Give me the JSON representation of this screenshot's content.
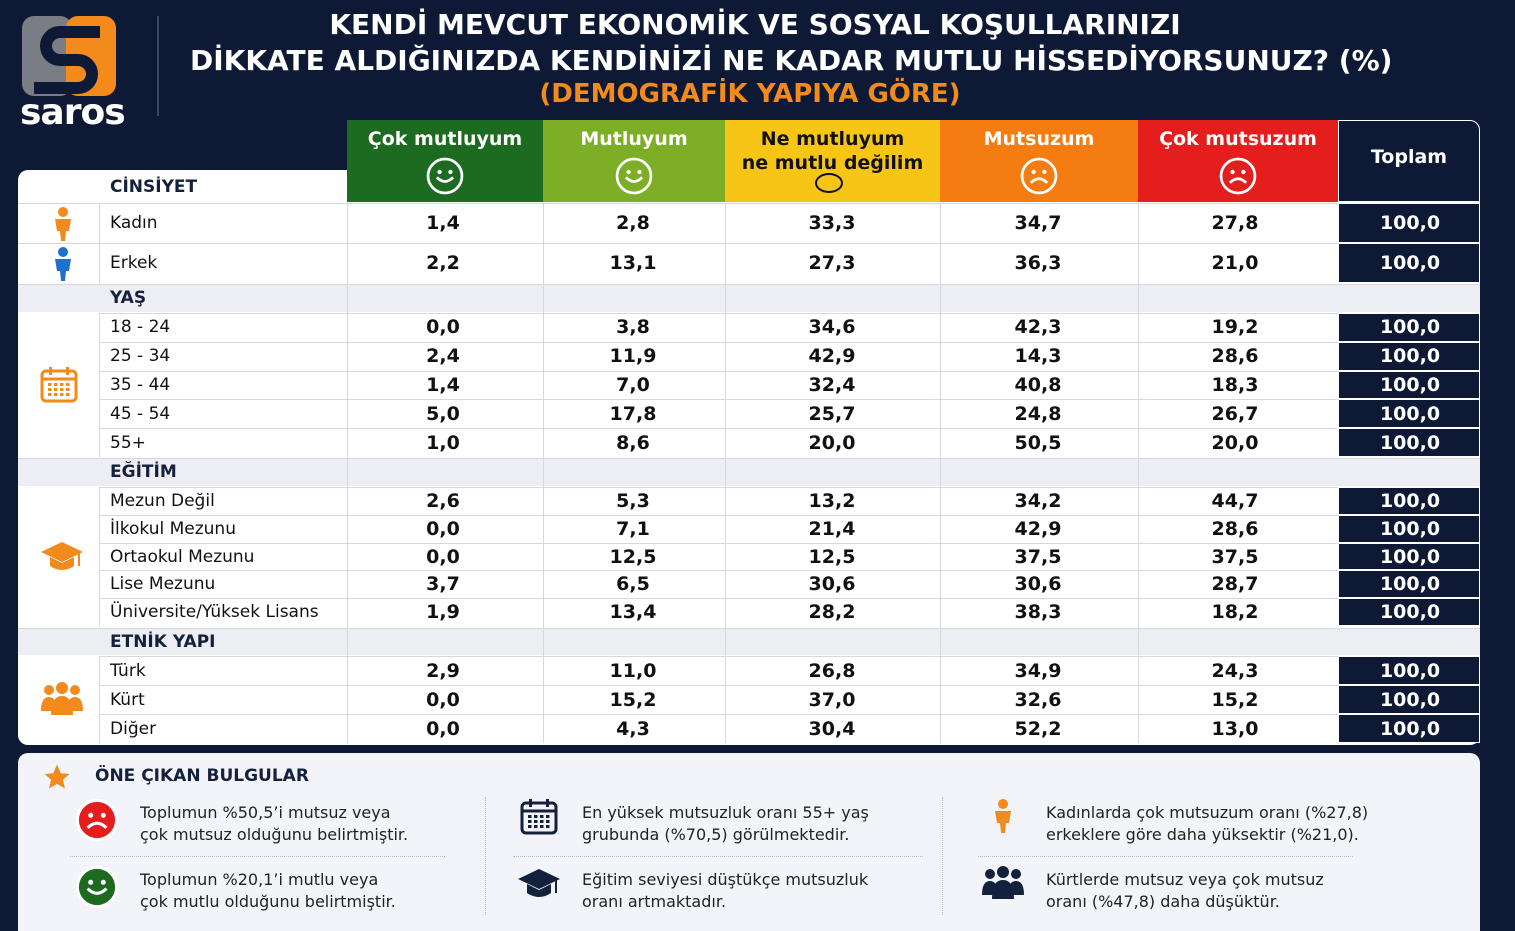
{
  "header": {
    "logo": "saros",
    "title_line1": "KENDİ MEVCUT EKONOMİK VE SOSYAL KOŞULLARINIZI",
    "title_line2": "DİKKATE ALDIĞINIZDA KENDİNİZİ NE KADAR MUTLU HİSSEDİYORSUNUZ? (%)",
    "subtitle": "(DEMOGRAFİK YAPIYA GÖRE)"
  },
  "table": {
    "columns": [
      {
        "lines": [
          "Çok mutluyum"
        ]
      },
      {
        "lines": [
          "Mutluyum"
        ]
      },
      {
        "lines": [
          "Ne mutluyum",
          "ne mutlu değilim"
        ]
      },
      {
        "lines": [
          "Mutsuzum"
        ]
      },
      {
        "lines": [
          "Çok mutsuzum"
        ]
      },
      {
        "lines": [
          "Toplam"
        ]
      }
    ],
    "groups": [
      {
        "name": "CİNSİYET",
        "rows": [
          {
            "label": "Kadın",
            "values": [
              "1,4",
              "2,8",
              "33,3",
              "34,7",
              "27,8",
              "100,0"
            ]
          },
          {
            "label": "Erkek",
            "values": [
              "2,2",
              "13,1",
              "27,3",
              "36,3",
              "21,0",
              "100,0"
            ]
          }
        ]
      },
      {
        "name": "YAŞ",
        "rows": [
          {
            "label": "18 - 24",
            "values": [
              "0,0",
              "3,8",
              "34,6",
              "42,3",
              "19,2",
              "100,0"
            ]
          },
          {
            "label": "25 - 34",
            "values": [
              "2,4",
              "11,9",
              "42,9",
              "14,3",
              "28,6",
              "100,0"
            ]
          },
          {
            "label": "35 - 44",
            "values": [
              "1,4",
              "7,0",
              "32,4",
              "40,8",
              "18,3",
              "100,0"
            ]
          },
          {
            "label": "45 - 54",
            "values": [
              "5,0",
              "17,8",
              "25,7",
              "24,8",
              "26,7",
              "100,0"
            ]
          },
          {
            "label": "55+",
            "values": [
              "1,0",
              "8,6",
              "20,0",
              "50,5",
              "20,0",
              "100,0"
            ]
          }
        ]
      },
      {
        "name": "EĞİTİM",
        "rows": [
          {
            "label": "Mezun Değil",
            "values": [
              "2,6",
              "5,3",
              "13,2",
              "34,2",
              "44,7",
              "100,0"
            ]
          },
          {
            "label": "İlkokul Mezunu",
            "values": [
              "0,0",
              "7,1",
              "21,4",
              "42,9",
              "28,6",
              "100,0"
            ]
          },
          {
            "label": "Ortaokul Mezunu",
            "values": [
              "0,0",
              "12,5",
              "12,5",
              "37,5",
              "37,5",
              "100,0"
            ]
          },
          {
            "label": "Lise Mezunu",
            "values": [
              "3,7",
              "6,5",
              "30,6",
              "30,6",
              "28,7",
              "100,0"
            ]
          },
          {
            "label": "Üniversite/Yüksek Lisans",
            "values": [
              "1,9",
              "13,4",
              "28,2",
              "38,3",
              "18,2",
              "100,0"
            ]
          }
        ]
      },
      {
        "name": "ETNİK YAPI",
        "rows": [
          {
            "label": "Türk",
            "values": [
              "2,9",
              "11,0",
              "26,8",
              "34,9",
              "24,3",
              "100,0"
            ]
          },
          {
            "label": "Kürt",
            "values": [
              "0,0",
              "15,2",
              "37,0",
              "32,6",
              "15,2",
              "100,0"
            ]
          },
          {
            "label": "Diğer",
            "values": [
              "0,0",
              "4,3",
              "30,4",
              "52,2",
              "13,0",
              "100,0"
            ]
          }
        ]
      }
    ]
  },
  "findings": {
    "title": "ÖNE ÇIKAN BULGULAR",
    "items": [
      {
        "line1": "Toplumun %50,5’i mutsuz veya",
        "line2": "çok mutsuz olduğunu belirtmiştir."
      },
      {
        "line1": "En yüksek mutsuzluk oranı 55+ yaş",
        "line2": "grubunda (%70,5) görülmektedir."
      },
      {
        "line1": "Kadınlarda çok mutsuzum oranı (%27,8)",
        "line2": "erkeklere göre daha yüksektir (%21,0)."
      },
      {
        "line1": "Toplumun %20,1’i mutlu veya",
        "line2": "çok mutlu olduğunu belirtmiştir."
      },
      {
        "line1": "Eğitim seviyesi düştükçe mutsuzluk",
        "line2": "oranı artmaktadır."
      },
      {
        "line1": "Kürtlerde mutsuz veya çok mutsuz",
        "line2": "oranı (%47,8) daha düşüktür."
      }
    ]
  }
}
